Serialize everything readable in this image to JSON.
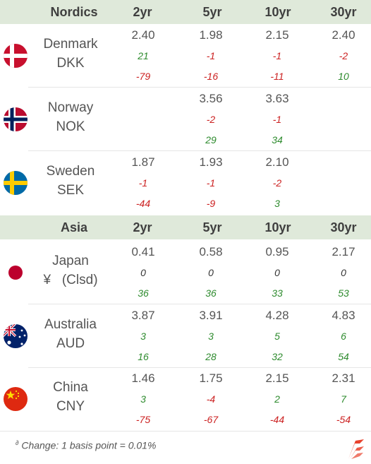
{
  "columns": [
    "2yr",
    "5yr",
    "10yr",
    "30yr"
  ],
  "sections": [
    {
      "region": "Nordics",
      "rows": [
        {
          "country": "Denmark",
          "currency": "DKK",
          "flag": "denmark-flag-icon",
          "cells": [
            {
              "yield": "2.40",
              "chg1": "21",
              "chg2": "-79"
            },
            {
              "yield": "1.98",
              "chg1": "-1",
              "chg2": "-16"
            },
            {
              "yield": "2.15",
              "chg1": "-1",
              "chg2": "-11"
            },
            {
              "yield": "2.40",
              "chg1": "-2",
              "chg2": "10"
            }
          ]
        },
        {
          "country": "Norway",
          "currency": "NOK",
          "flag": "norway-flag-icon",
          "cells": [
            {
              "yield": "",
              "chg1": "",
              "chg2": ""
            },
            {
              "yield": "3.56",
              "chg1": "-2",
              "chg2": "29"
            },
            {
              "yield": "3.63",
              "chg1": "-1",
              "chg2": "34"
            },
            {
              "yield": "",
              "chg1": "",
              "chg2": ""
            }
          ]
        },
        {
          "country": "Sweden",
          "currency": "SEK",
          "flag": "sweden-flag-icon",
          "cells": [
            {
              "yield": "1.87",
              "chg1": "-1",
              "chg2": "-44"
            },
            {
              "yield": "1.93",
              "chg1": "-1",
              "chg2": "-9"
            },
            {
              "yield": "2.10",
              "chg1": "-2",
              "chg2": "3"
            },
            {
              "yield": "",
              "chg1": "",
              "chg2": ""
            }
          ]
        }
      ]
    },
    {
      "region": "Asia",
      "rows": [
        {
          "country": "Japan",
          "currency": "¥   (Clsd)",
          "flag": "japan-flag-icon",
          "cells": [
            {
              "yield": "0.41",
              "chg1": "0",
              "chg2": "36"
            },
            {
              "yield": "0.58",
              "chg1": "0",
              "chg2": "36"
            },
            {
              "yield": "0.95",
              "chg1": "0",
              "chg2": "33"
            },
            {
              "yield": "2.17",
              "chg1": "0",
              "chg2": "53"
            }
          ]
        },
        {
          "country": "Australia",
          "currency": "AUD",
          "flag": "australia-flag-icon",
          "cells": [
            {
              "yield": "3.87",
              "chg1": "3",
              "chg2": "16"
            },
            {
              "yield": "3.91",
              "chg1": "3",
              "chg2": "28"
            },
            {
              "yield": "4.28",
              "chg1": "5",
              "chg2": "32"
            },
            {
              "yield": "4.83",
              "chg1": "6",
              "chg2": "54"
            }
          ]
        },
        {
          "country": "China",
          "currency": "CNY",
          "flag": "china-flag-icon",
          "cells": [
            {
              "yield": "1.46",
              "chg1": "3",
              "chg2": "-75"
            },
            {
              "yield": "1.75",
              "chg1": "-4",
              "chg2": "-67"
            },
            {
              "yield": "2.15",
              "chg1": "2",
              "chg2": "-44"
            },
            {
              "yield": "2.31",
              "chg1": "7",
              "chg2": "-54"
            }
          ]
        }
      ]
    }
  ],
  "footnote": {
    "marker": "∂",
    "text": " Change: 1 basis point = 0.01%"
  },
  "colors": {
    "header_bg": "#dfe9da",
    "positive": "#2e8b2e",
    "negative": "#cc2222",
    "brand": "#e8412c"
  },
  "logo": "brand-logo-icon"
}
